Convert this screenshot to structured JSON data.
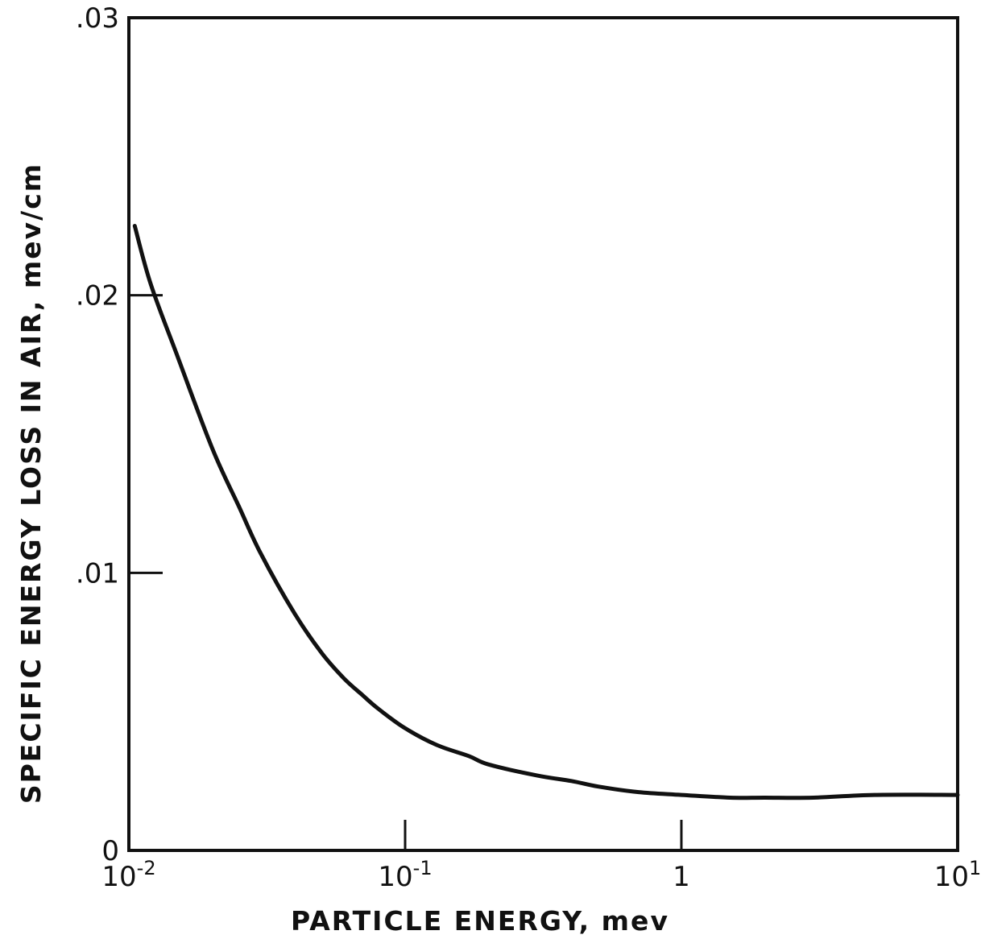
{
  "chart_data": {
    "type": "line",
    "title": "",
    "xlabel": "PARTICLE ENERGY, mev",
    "ylabel": "SPECIFIC ENERGY LOSS IN AIR, mev/cm",
    "x_scale": "log",
    "xlim": [
      0.01,
      10
    ],
    "ylim": [
      0,
      0.03
    ],
    "grid": false,
    "x_ticks": [
      {
        "value": 0.01,
        "base": "10",
        "exp": "-2"
      },
      {
        "value": 0.1,
        "base": "10",
        "exp": "-1"
      },
      {
        "value": 1,
        "base": "1",
        "exp": ""
      },
      {
        "value": 10,
        "base": "10",
        "exp": "1"
      }
    ],
    "y_ticks": [
      {
        "value": 0,
        "label": "0"
      },
      {
        "value": 0.01,
        "label": ".01"
      },
      {
        "value": 0.02,
        "label": ".02"
      },
      {
        "value": 0.03,
        "label": ".03"
      }
    ],
    "series": [
      {
        "color": "#111111",
        "x": [
          0.0105,
          0.012,
          0.015,
          0.02,
          0.025,
          0.03,
          0.04,
          0.05,
          0.06,
          0.07,
          0.08,
          0.1,
          0.13,
          0.17,
          0.2,
          0.3,
          0.4,
          0.5,
          0.7,
          1.0,
          1.5,
          2.0,
          3.0,
          5.0,
          10.0
        ],
        "y": [
          0.0225,
          0.0204,
          0.0178,
          0.0145,
          0.0124,
          0.0107,
          0.0085,
          0.0071,
          0.0062,
          0.0056,
          0.0051,
          0.0044,
          0.0038,
          0.0034,
          0.0031,
          0.0027,
          0.0025,
          0.0023,
          0.0021,
          0.002,
          0.0019,
          0.0019,
          0.0019,
          0.002,
          0.002
        ]
      }
    ]
  }
}
